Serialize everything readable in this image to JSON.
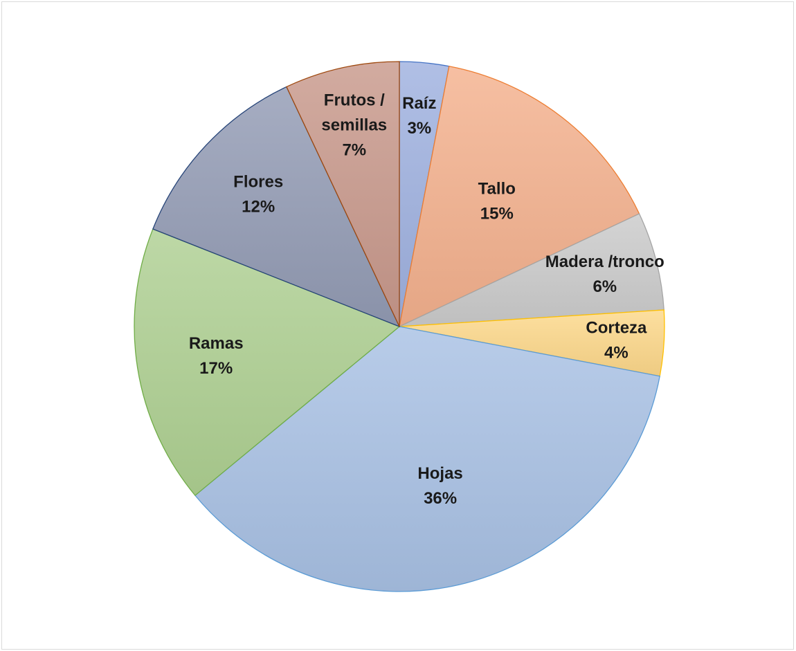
{
  "chart_data": {
    "type": "pie",
    "title": "",
    "slices": [
      {
        "label": "Raíz",
        "value": 3,
        "value_label": "3%",
        "color": "#9fb1df",
        "stroke": "#4472c4"
      },
      {
        "label": "Tallo",
        "value": 15,
        "value_label": "15%",
        "color": "#f4b18e",
        "stroke": "#ed7d31"
      },
      {
        "label": "Madera /tronco",
        "value": 6,
        "value_label": "6%",
        "color": "#cbcbcb",
        "stroke": "#a5a5a5"
      },
      {
        "label": "Corteza",
        "value": 4,
        "value_label": "4%",
        "color": "#fdd88a",
        "stroke": "#ffc000"
      },
      {
        "label": "Hojas",
        "value": 36,
        "value_label": "36%",
        "color": "#a8c1e4",
        "stroke": "#5b9bd5"
      },
      {
        "label": "Ramas",
        "value": 17,
        "value_label": "17%",
        "color": "#aed092",
        "stroke": "#70ad47"
      },
      {
        "label": "Flores",
        "value": 12,
        "value_label": "12%",
        "color": "#939bb4",
        "stroke": "#264478"
      },
      {
        "label": "Frutos / semillas",
        "value": 7,
        "value_label": "7%",
        "color": "#c8988b",
        "stroke": "#9e480e"
      }
    ],
    "legend": "none"
  }
}
